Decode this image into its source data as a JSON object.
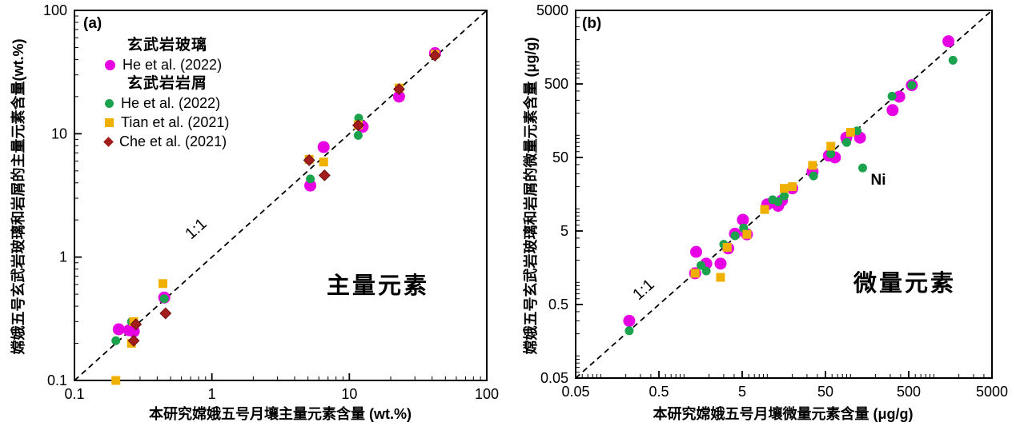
{
  "figure": {
    "background": "#ffffff",
    "axis_color": "#000000"
  },
  "colors": {
    "basalt_glass_magenta": "#E800E4",
    "basalt_clast_green": "#1AA24D",
    "basalt_clast_yellow": "#F0B000",
    "basalt_clast_dark_red": "#A31D1D"
  },
  "legend": {
    "groups": [
      {
        "header": "玄武岩玻璃",
        "items": [
          {
            "label": "He et al. (2022)",
            "marker": "circle",
            "color": "#E800E4"
          }
        ]
      },
      {
        "header": "玄武岩岩屑",
        "items": [
          {
            "label": "He et al. (2022)",
            "marker": "circle",
            "color": "#1AA24D"
          },
          {
            "label": "Tian et al. (2021)",
            "marker": "square",
            "color": "#F0B000"
          },
          {
            "label": "Che et al. (2021)",
            "marker": "diamond",
            "color": "#A31D1D"
          }
        ]
      }
    ]
  },
  "chart_data": [
    {
      "type": "scatter",
      "panel_label": "(a)",
      "annotation": "主量元素",
      "xlabel": "本研究嫦娥五号月壤主量元素含量 (wt.%)",
      "ylabel": "嫦娥五号玄武岩玻璃和岩屑的主量元素含量(wt.%)",
      "xscale": "log",
      "yscale": "log",
      "xlim": [
        0.1,
        100
      ],
      "ylim": [
        0.1,
        100
      ],
      "xticks": [
        0.1,
        1,
        10,
        100
      ],
      "yticks": [
        0.1,
        1,
        10,
        100
      ],
      "xtick_labels": [
        "0.1",
        "1",
        "10",
        "100"
      ],
      "ytick_labels": [
        "0.1",
        "1",
        "10",
        "100"
      ],
      "grid": false,
      "reference_line": {
        "label": "1:1",
        "style": "dashed",
        "slope": 1
      },
      "point_annotations": [],
      "series": [
        {
          "name": "玄武岩玻璃 He et al. (2022)",
          "marker": "circle",
          "color": "#E800E4",
          "size": 15,
          "points": [
            [
              0.21,
              0.26
            ],
            [
              0.25,
              0.255
            ],
            [
              0.27,
              0.25
            ],
            [
              0.45,
              0.47
            ],
            [
              5.2,
              3.8
            ],
            [
              6.5,
              7.8
            ],
            [
              12.5,
              11.4
            ],
            [
              23,
              20
            ],
            [
              42,
              45
            ]
          ]
        },
        {
          "name": "玄武岩岩屑 He et al. (2022)",
          "marker": "circle",
          "color": "#1AA24D",
          "size": 11,
          "points": [
            [
              0.2,
              0.21
            ],
            [
              0.26,
              0.3
            ],
            [
              0.45,
              0.46
            ],
            [
              5.2,
              4.3
            ],
            [
              11.6,
              9.7
            ],
            [
              11.7,
              13.4
            ]
          ]
        },
        {
          "name": "玄武岩岩屑 Tian et al. (2021)",
          "marker": "square",
          "color": "#F0B000",
          "size": 11,
          "points": [
            [
              0.2,
              0.1
            ],
            [
              0.26,
              0.2
            ],
            [
              0.27,
              0.3
            ],
            [
              0.44,
              0.61
            ],
            [
              5.1,
              6.2
            ],
            [
              6.5,
              5.9
            ],
            [
              11.6,
              11.8
            ],
            [
              23,
              23.5
            ],
            [
              42,
              44
            ]
          ]
        },
        {
          "name": "玄武岩岩屑 Che et al. (2021)",
          "marker": "diamond",
          "color": "#A31D1D",
          "size": 9.5,
          "points": [
            [
              0.27,
              0.21
            ],
            [
              0.28,
              0.285
            ],
            [
              0.46,
              0.35
            ],
            [
              5.1,
              6.1
            ],
            [
              6.6,
              4.6
            ],
            [
              11.6,
              11.7
            ],
            [
              23,
              23
            ],
            [
              42,
              43
            ]
          ]
        }
      ]
    },
    {
      "type": "scatter",
      "panel_label": "(b)",
      "annotation": "微量元素",
      "xlabel": "本研究嫦娥五号月壤微量元素含量 (μg/g)",
      "ylabel": "嫦娥五号玄武岩玻璃和岩屑的微量元素含量 (μg/g)",
      "xscale": "log",
      "yscale": "log",
      "xlim": [
        0.05,
        5000
      ],
      "ylim": [
        0.05,
        5000
      ],
      "xticks": [
        0.05,
        0.5,
        5,
        50,
        500,
        5000
      ],
      "yticks": [
        0.05,
        0.5,
        5,
        50,
        500,
        5000
      ],
      "xtick_labels": [
        "0.05",
        "0.5",
        "5",
        "50",
        "500",
        "5000"
      ],
      "ytick_labels": [
        "0.05",
        "0.5",
        "5",
        "50",
        "500",
        "5000"
      ],
      "grid": false,
      "reference_line": {
        "label": "1:1",
        "style": "dashed",
        "slope": 1
      },
      "point_annotations": [
        {
          "text": "Ni",
          "x": 140,
          "y": 36
        }
      ],
      "series": [
        {
          "name": "玄武岩玻璃 He et al. (2022)",
          "marker": "circle",
          "color": "#E800E4",
          "size": 15,
          "points": [
            [
              0.22,
              0.3
            ],
            [
              1.36,
              1.33
            ],
            [
              1.4,
              2.6
            ],
            [
              1.85,
              1.8
            ],
            [
              2.75,
              1.8
            ],
            [
              3.4,
              2.9
            ],
            [
              4.1,
              4.6
            ],
            [
              5.1,
              7.1
            ],
            [
              5.7,
              4.5
            ],
            [
              10,
              11.5
            ],
            [
              13.5,
              11
            ],
            [
              15,
              13
            ],
            [
              20,
              19
            ],
            [
              35,
              32
            ],
            [
              55,
              53
            ],
            [
              65,
              50
            ],
            [
              89,
              93
            ],
            [
              130,
              93
            ],
            [
              320,
              220
            ],
            [
              385,
              335
            ],
            [
              545,
              480
            ],
            [
              1500,
              1900
            ]
          ]
        },
        {
          "name": "玄武岩岩屑 He et al. (2022)",
          "marker": "circle",
          "color": "#1AA24D",
          "size": 11,
          "points": [
            [
              0.22,
              0.22
            ],
            [
              1.6,
              1.7
            ],
            [
              1.85,
              1.43
            ],
            [
              3.0,
              3.3
            ],
            [
              4.1,
              4.3
            ],
            [
              5.2,
              5.5
            ],
            [
              11.6,
              13.3
            ],
            [
              13.5,
              12.5
            ],
            [
              16,
              15
            ],
            [
              36,
              28
            ],
            [
              58,
              56
            ],
            [
              90,
              80
            ],
            [
              120,
              115
            ],
            [
              140,
              36
            ],
            [
              315,
              340
            ],
            [
              545,
              480
            ],
            [
              1700,
              1050
            ]
          ]
        },
        {
          "name": "玄武岩岩屑 Tian et al. (2021)",
          "marker": "square",
          "color": "#F0B000",
          "size": 11,
          "points": [
            [
              1.36,
              1.33
            ],
            [
              2.75,
              1.17
            ],
            [
              3.3,
              3.0
            ],
            [
              5.7,
              4.5
            ],
            [
              9.3,
              9.8
            ],
            [
              16,
              19
            ],
            [
              20,
              20
            ],
            [
              35,
              39
            ],
            [
              58,
              71
            ],
            [
              100,
              110
            ]
          ]
        }
      ]
    }
  ]
}
